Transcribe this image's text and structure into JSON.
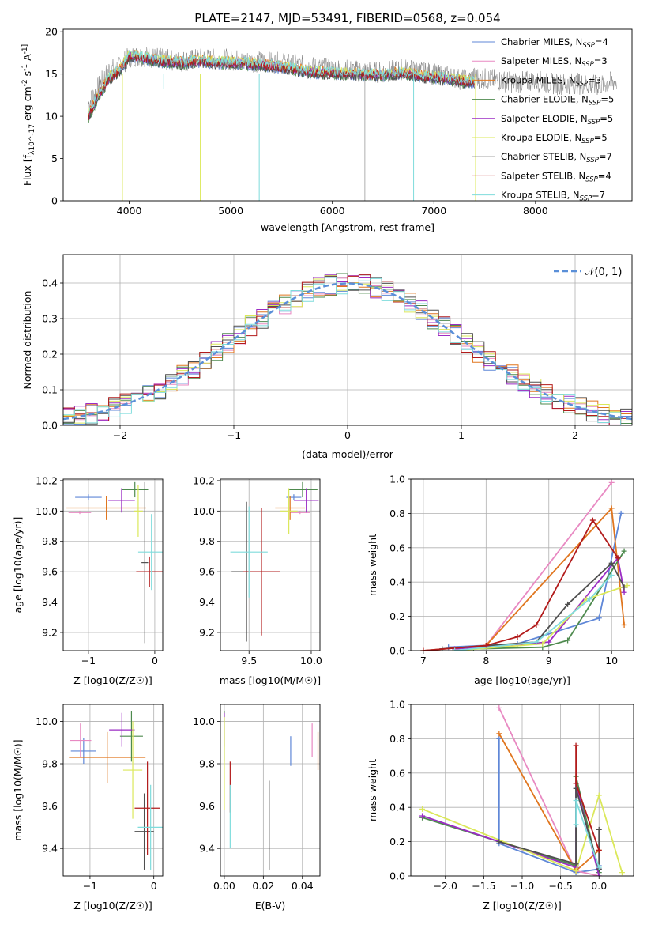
{
  "colors": {
    "chabrier_miles": "#5f87d7",
    "salpeter_miles": "#e889c2",
    "kroupa_miles": "#e0761f",
    "chabrier_elodie": "#4e8a4e",
    "salpeter_elodie": "#9b2cc4",
    "kroupa_elodie": "#dbe85a",
    "chabrier_stelib": "#4f4f4f",
    "salpeter_stelib": "#b21b1b",
    "kroupa_stelib": "#7fdcdc",
    "normal": "#5a8fd8"
  },
  "chart_data": [
    {
      "id": "spectrum",
      "type": "line",
      "title": "PLATE=2147, MJD=53491, FIBERID=0568, z=0.054",
      "xlabel": "wavelength [Angstrom, rest frame]",
      "ylabel": "Flux [f_λ10^-17 erg cm^-2 s^-1 A^-1]",
      "xlim": [
        3350,
        8950
      ],
      "ylim": [
        0,
        20.3
      ],
      "xticks": [
        "4000",
        "5000",
        "6000",
        "7000",
        "8000"
      ],
      "yticks": [
        "0",
        "5",
        "10",
        "15",
        "20"
      ],
      "grid": false,
      "legend_position": "top-right",
      "legend": [
        "Chabrier MILES, N_SSP=4",
        "Salpeter MILES, N_SSP=3",
        "Kroupa MILES, N_SSP=3",
        "Chabrier ELODIE, N_SSP=5",
        "Salpeter ELODIE, N_SSP=5",
        "Kroupa ELODIE, N_SSP=5",
        "Chabrier STELIB, N_SSP=7",
        "Salpeter STELIB, N_SSP=4",
        "Kroupa STELIB, N_SSP=7"
      ],
      "data_continuum": {
        "wavelength": [
          3600,
          3700,
          3800,
          3900,
          4000,
          4100,
          4300,
          4500,
          4700,
          5000,
          5200,
          5500,
          5800,
          6000,
          6300,
          6500,
          6700,
          6900,
          7100,
          7300,
          7400,
          7600,
          7800,
          8000,
          8200,
          8400,
          8600,
          8800
        ],
        "flux": [
          11.5,
          13.5,
          15.5,
          15.8,
          17.0,
          17.2,
          16.8,
          16.5,
          16.8,
          16.7,
          16.5,
          16.3,
          15.8,
          15.6,
          15.3,
          15.2,
          15.6,
          15.2,
          14.8,
          14.3,
          14.6,
          14.3,
          14.0,
          14.2,
          13.8,
          13.9,
          13.6,
          14.2
        ]
      },
      "model_continuum": {
        "wavelength": [
          3600,
          3700,
          3800,
          3900,
          4000,
          4100,
          4300,
          4500,
          4700,
          5000,
          5200,
          5500,
          5800,
          6000,
          6300,
          6500,
          6700,
          6900,
          7100,
          7300,
          7400
        ],
        "flux": [
          10.0,
          12.5,
          14.5,
          15.3,
          17.2,
          17.0,
          16.5,
          16.3,
          16.5,
          16.3,
          16.2,
          15.8,
          15.2,
          15.1,
          14.9,
          14.9,
          15.1,
          14.7,
          14.5,
          14.1,
          14.0
        ]
      },
      "dips": [
        {
          "wavelength": 3933,
          "flux": 0
        },
        {
          "wavelength": 4340,
          "flux": 13.2
        },
        {
          "wavelength": 4700,
          "flux": 0
        },
        {
          "wavelength": 5280,
          "flux": 0
        },
        {
          "wavelength": 6320,
          "flux": 0
        },
        {
          "wavelength": 6800,
          "flux": 0
        },
        {
          "wavelength": 7410,
          "flux": 0
        }
      ]
    },
    {
      "id": "residuals",
      "type": "line",
      "xlabel": "(data-model)/error",
      "ylabel": "Normed distribution",
      "xlim": [
        -2.5,
        2.5
      ],
      "ylim": [
        0,
        0.48
      ],
      "xticks": [
        "−2",
        "−1",
        "0",
        "1",
        "2"
      ],
      "yticks": [
        "0.0",
        "0.1",
        "0.2",
        "0.3",
        "0.4"
      ],
      "grid": true,
      "legend_position": "top-right",
      "legend": [
        "𝒩(0, 1)"
      ],
      "normal": {
        "mu": 0,
        "sigma": 1
      },
      "hist_bin_width": 0.1
    },
    {
      "id": "z-vs-age",
      "type": "scatter",
      "xlabel": "Z [log10(Z/Z☉)]",
      "ylabel": "age  [log10(age/yr)]",
      "xlim": [
        -1.38,
        0.12
      ],
      "ylim": [
        9.08,
        10.21
      ],
      "xticks": [
        "−1",
        "0"
      ],
      "yticks": [
        "9.2",
        "9.4",
        "9.6",
        "9.8",
        "10.0",
        "10.2"
      ],
      "grid": true,
      "points": [
        {
          "series": "chabrier_miles",
          "x": -1.0,
          "xerr": 0.2,
          "y": 10.09,
          "yerr": 0.02
        },
        {
          "series": "salpeter_miles",
          "x": -1.13,
          "xerr": 0.17,
          "y": 9.99,
          "yerr": 0.01
        },
        {
          "series": "kroupa_miles",
          "x": -0.73,
          "xerr": 0.6,
          "y": 10.02,
          "yerr": 0.08
        },
        {
          "series": "chabrier_elodie",
          "x": -0.3,
          "xerr": 0.2,
          "y": 10.14,
          "yerr": 0.05
        },
        {
          "series": "salpeter_elodie",
          "x": -0.5,
          "xerr": 0.2,
          "y": 10.07,
          "yerr": 0.08
        },
        {
          "series": "kroupa_elodie",
          "x": -0.25,
          "xerr": 0.07,
          "y": 10.0,
          "yerr": 0.17
        },
        {
          "series": "chabrier_stelib",
          "x": -0.15,
          "xerr": 0.05,
          "y": 9.66,
          "yerr": 0.53
        },
        {
          "series": "salpeter_stelib",
          "x": -0.08,
          "xerr": 0.2,
          "y": 9.6,
          "yerr": 0.1
        },
        {
          "series": "kroupa_stelib",
          "x": -0.05,
          "xerr": 0.2,
          "y": 9.73,
          "yerr": 0.25
        }
      ]
    },
    {
      "id": "mass-vs-age",
      "type": "scatter",
      "xlabel": "mass [log10(M/M☉)]",
      "ylabel": "",
      "xlim": [
        9.27,
        10.07
      ],
      "ylim": [
        9.08,
        10.21
      ],
      "xticks": [
        "9.5",
        "10.0"
      ],
      "yticks": [
        "9.2",
        "9.4",
        "9.6",
        "9.8",
        "10.0",
        "10.2"
      ],
      "grid": true,
      "points": [
        {
          "series": "chabrier_miles",
          "x": 9.86,
          "xerr": 0.06,
          "y": 10.09,
          "yerr": 0.02
        },
        {
          "series": "salpeter_miles",
          "x": 9.91,
          "xerr": 0.08,
          "y": 9.99,
          "yerr": 0.01
        },
        {
          "series": "kroupa_miles",
          "x": 9.83,
          "xerr": 0.12,
          "y": 10.02,
          "yerr": 0.08
        },
        {
          "series": "chabrier_elodie",
          "x": 9.93,
          "xerr": 0.12,
          "y": 10.14,
          "yerr": 0.05
        },
        {
          "series": "salpeter_elodie",
          "x": 9.96,
          "xerr": 0.1,
          "y": 10.07,
          "yerr": 0.08
        },
        {
          "series": "kroupa_elodie",
          "x": 9.82,
          "xerr": 0.07,
          "y": 10.0,
          "yerr": 0.15
        },
        {
          "series": "chabrier_stelib",
          "x": 9.48,
          "xerr": 0.12,
          "y": 9.6,
          "yerr": 0.46
        },
        {
          "series": "salpeter_stelib",
          "x": 9.6,
          "xerr": 0.15,
          "y": 9.6,
          "yerr": 0.42
        },
        {
          "series": "kroupa_stelib",
          "x": 9.5,
          "xerr": 0.15,
          "y": 9.73,
          "yerr": 0.3
        }
      ]
    },
    {
      "id": "age-vs-weight",
      "type": "line",
      "xlabel": "age  [log10(age/yr)]",
      "ylabel": "mass weight",
      "xlim": [
        6.8,
        10.35
      ],
      "ylim": [
        0,
        1.0
      ],
      "xticks": [
        "7",
        "8",
        "9",
        "10"
      ],
      "yticks": [
        "0.0",
        "0.2",
        "0.4",
        "0.6",
        "0.8",
        "1.0"
      ],
      "grid": true,
      "series": [
        {
          "key": "chabrier_miles",
          "x": [
            7.4,
            8.5,
            9.8,
            10.15
          ],
          "y": [
            0.02,
            0.04,
            0.19,
            0.8
          ]
        },
        {
          "key": "salpeter_miles",
          "x": [
            7.0,
            8.0,
            10.0
          ],
          "y": [
            0.0,
            0.03,
            0.98
          ]
        },
        {
          "key": "kroupa_miles",
          "x": [
            7.0,
            8.0,
            10.0,
            10.2
          ],
          "y": [
            0.0,
            0.03,
            0.83,
            0.15
          ]
        },
        {
          "key": "chabrier_elodie",
          "x": [
            7.8,
            8.9,
            9.3,
            10.2
          ],
          "y": [
            0.01,
            0.02,
            0.06,
            0.58
          ]
        },
        {
          "key": "salpeter_elodie",
          "x": [
            7.5,
            9.0,
            10.1,
            10.2
          ],
          "y": [
            0.01,
            0.05,
            0.54,
            0.34
          ]
        },
        {
          "key": "kroupa_elodie",
          "x": [
            7.5,
            8.9,
            9.6,
            10.25
          ],
          "y": [
            0.0,
            0.04,
            0.3,
            0.38
          ]
        },
        {
          "key": "chabrier_stelib",
          "x": [
            7.3,
            8.8,
            9.3,
            10.0,
            10.2
          ],
          "y": [
            0.01,
            0.05,
            0.27,
            0.51,
            0.37
          ]
        },
        {
          "key": "salpeter_stelib",
          "x": [
            7.0,
            8.0,
            8.5,
            8.8,
            9.7,
            10.1
          ],
          "y": [
            0.0,
            0.03,
            0.08,
            0.15,
            0.76,
            0.54
          ]
        },
        {
          "key": "kroupa_stelib",
          "x": [
            7.5,
            8.8,
            9.65,
            10.0
          ],
          "y": [
            0.0,
            0.05,
            0.3,
            0.44
          ]
        }
      ]
    },
    {
      "id": "z-vs-mass",
      "type": "scatter",
      "xlabel": "Z [log10(Z/Z☉)]",
      "ylabel": "mass [log10(M/M☉)]",
      "xlim": [
        -1.42,
        0.14
      ],
      "ylim": [
        9.27,
        10.08
      ],
      "xticks": [
        "−1",
        "0"
      ],
      "yticks": [
        "9.4",
        "9.6",
        "9.8",
        "10.0"
      ],
      "grid": true,
      "points": [
        {
          "series": "chabrier_miles",
          "x": -1.1,
          "xerr": 0.2,
          "y": 9.86,
          "yerr": 0.06
        },
        {
          "series": "salpeter_miles",
          "x": -1.15,
          "xerr": 0.17,
          "y": 9.91,
          "yerr": 0.08
        },
        {
          "series": "kroupa_miles",
          "x": -0.73,
          "xerr": 0.6,
          "y": 9.83,
          "yerr": 0.12
        },
        {
          "series": "chabrier_elodie",
          "x": -0.35,
          "xerr": 0.18,
          "y": 9.93,
          "yerr": 0.12
        },
        {
          "series": "salpeter_elodie",
          "x": -0.5,
          "xerr": 0.2,
          "y": 9.96,
          "yerr": 0.08
        },
        {
          "series": "kroupa_elodie",
          "x": -0.33,
          "xerr": 0.15,
          "y": 9.77,
          "yerr": 0.23
        },
        {
          "series": "chabrier_stelib",
          "x": -0.15,
          "xerr": 0.15,
          "y": 9.48,
          "yerr": 0.18
        },
        {
          "series": "salpeter_stelib",
          "x": -0.1,
          "xerr": 0.2,
          "y": 9.59,
          "yerr": 0.22
        },
        {
          "series": "kroupa_stelib",
          "x": -0.05,
          "xerr": 0.2,
          "y": 9.5,
          "yerr": 0.2
        }
      ]
    },
    {
      "id": "ebv-vs-mass",
      "type": "scatter",
      "xlabel": "E(B-V)",
      "ylabel": "",
      "xlim": [
        -0.002,
        0.049
      ],
      "ylim": [
        9.27,
        10.08
      ],
      "xticks": [
        "0.00",
        "0.02",
        "0.04"
      ],
      "yticks": [
        "9.4",
        "9.6",
        "9.8",
        "10.0"
      ],
      "grid": true,
      "points": [
        {
          "series": "chabrier_miles",
          "x": 0.034,
          "xerr": 0,
          "y": 9.86,
          "yerr": 0.07
        },
        {
          "series": "salpeter_miles",
          "x": 0.045,
          "xerr": 0,
          "y": 9.91,
          "yerr": 0.08
        },
        {
          "series": "kroupa_miles",
          "x": 0.048,
          "xerr": 0,
          "y": 9.86,
          "yerr": 0.09
        },
        {
          "series": "chabrier_elodie",
          "x": 0.0,
          "xerr": 0,
          "y": 9.93,
          "yerr": 0.12
        },
        {
          "series": "salpeter_elodie",
          "x": 0.0,
          "xerr": 0,
          "y": 9.96,
          "yerr": 0.08
        },
        {
          "series": "kroupa_elodie",
          "x": 0.0,
          "xerr": 0,
          "y": 9.8,
          "yerr": 0.22
        },
        {
          "series": "chabrier_stelib",
          "x": 0.023,
          "xerr": 0,
          "y": 9.51,
          "yerr": 0.21
        },
        {
          "series": "salpeter_stelib",
          "x": 0.003,
          "xerr": 0,
          "y": 9.69,
          "yerr": 0.12
        },
        {
          "series": "kroupa_stelib",
          "x": 0.003,
          "xerr": 0,
          "y": 9.55,
          "yerr": 0.15
        }
      ]
    },
    {
      "id": "z-vs-weight",
      "type": "line",
      "xlabel": "Z [log10(Z/Z☉)]",
      "ylabel": "mass weight",
      "xlim": [
        -2.45,
        0.45
      ],
      "ylim": [
        0,
        1.0
      ],
      "xticks": [
        "−2.0",
        "−1.5",
        "−1.0",
        "−0.5",
        "0.0"
      ],
      "yticks": [
        "0.0",
        "0.2",
        "0.4",
        "0.6",
        "0.8",
        "1.0"
      ],
      "grid": true,
      "series": [
        {
          "key": "chabrier_miles",
          "x": [
            -1.3,
            -1.3,
            -0.3,
            0.0,
            0.0
          ],
          "y": [
            0.8,
            0.19,
            0.02,
            0.04,
            0.06
          ]
        },
        {
          "key": "salpeter_miles",
          "x": [
            -1.3,
            -0.3,
            0.0
          ],
          "y": [
            0.98,
            0.03,
            0.0
          ]
        },
        {
          "key": "kroupa_miles",
          "x": [
            -1.3,
            -0.3,
            0.0
          ],
          "y": [
            0.83,
            0.03,
            0.15
          ]
        },
        {
          "key": "chabrier_elodie",
          "x": [
            -2.3,
            -0.3,
            -0.3,
            0.0
          ],
          "y": [
            0.34,
            0.06,
            0.58,
            0.02
          ]
        },
        {
          "key": "salpeter_elodie",
          "x": [
            -2.3,
            -0.3,
            -0.3,
            0.0
          ],
          "y": [
            0.35,
            0.05,
            0.54,
            0.0
          ]
        },
        {
          "key": "kroupa_elodie",
          "x": [
            -2.3,
            -0.3,
            0.0,
            0.3
          ],
          "y": [
            0.39,
            0.03,
            0.47,
            0.02
          ]
        },
        {
          "key": "chabrier_stelib",
          "x": [
            -1.3,
            -0.3,
            -0.3,
            0.0,
            0.0
          ],
          "y": [
            0.2,
            0.07,
            0.51,
            0.04,
            0.27
          ]
        },
        {
          "key": "salpeter_stelib",
          "x": [
            -0.3,
            -0.3,
            0.0
          ],
          "y": [
            0.76,
            0.54,
            0.15
          ]
        },
        {
          "key": "kroupa_stelib",
          "x": [
            -0.3,
            -0.3,
            0.0
          ],
          "y": [
            0.3,
            0.44,
            0.05
          ]
        }
      ]
    }
  ]
}
